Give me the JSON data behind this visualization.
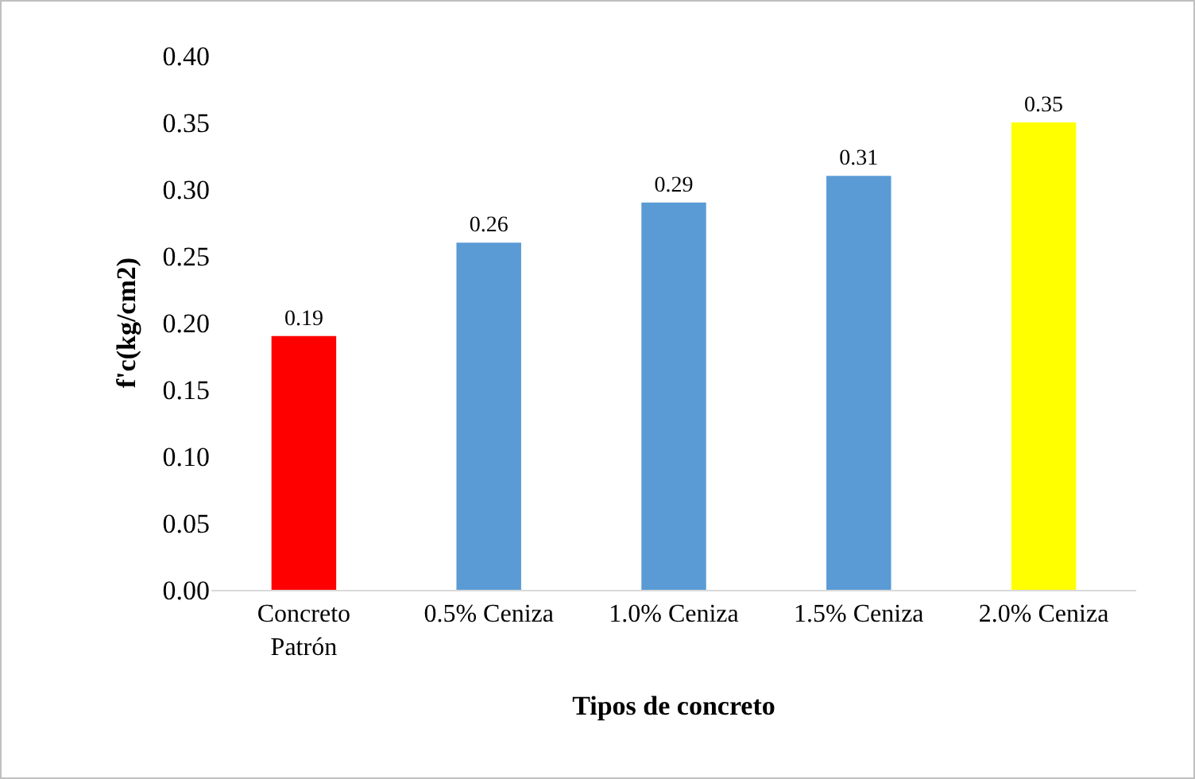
{
  "chart_data": {
    "type": "bar",
    "xlabel": "Tipos de concreto",
    "ylabel": "f'c(kg/cm2)",
    "categories": [
      "Concreto\nPatrón",
      "0.5% Ceniza",
      "1.0% Ceniza",
      "1.5% Ceniza",
      "2.0% Ceniza"
    ],
    "values": [
      0.19,
      0.26,
      0.29,
      0.31,
      0.35
    ],
    "colors": [
      "#ff0000",
      "#5b9bd5",
      "#5b9bd5",
      "#5b9bd5",
      "#ffff00"
    ],
    "ylim": [
      0,
      0.4
    ],
    "yticks": [
      {
        "value": 0,
        "label": "0.00"
      },
      {
        "value": 0.05,
        "label": "0.05"
      },
      {
        "value": 0.1,
        "label": "0.10"
      },
      {
        "value": 0.15,
        "label": "0.15"
      },
      {
        "value": 0.2,
        "label": "0.20"
      },
      {
        "value": 0.25,
        "label": "0.25"
      },
      {
        "value": 0.3,
        "label": "0.30"
      },
      {
        "value": 0.35,
        "label": "0.35"
      },
      {
        "value": 0.4,
        "label": "0.40"
      }
    ],
    "data_labels": true
  }
}
